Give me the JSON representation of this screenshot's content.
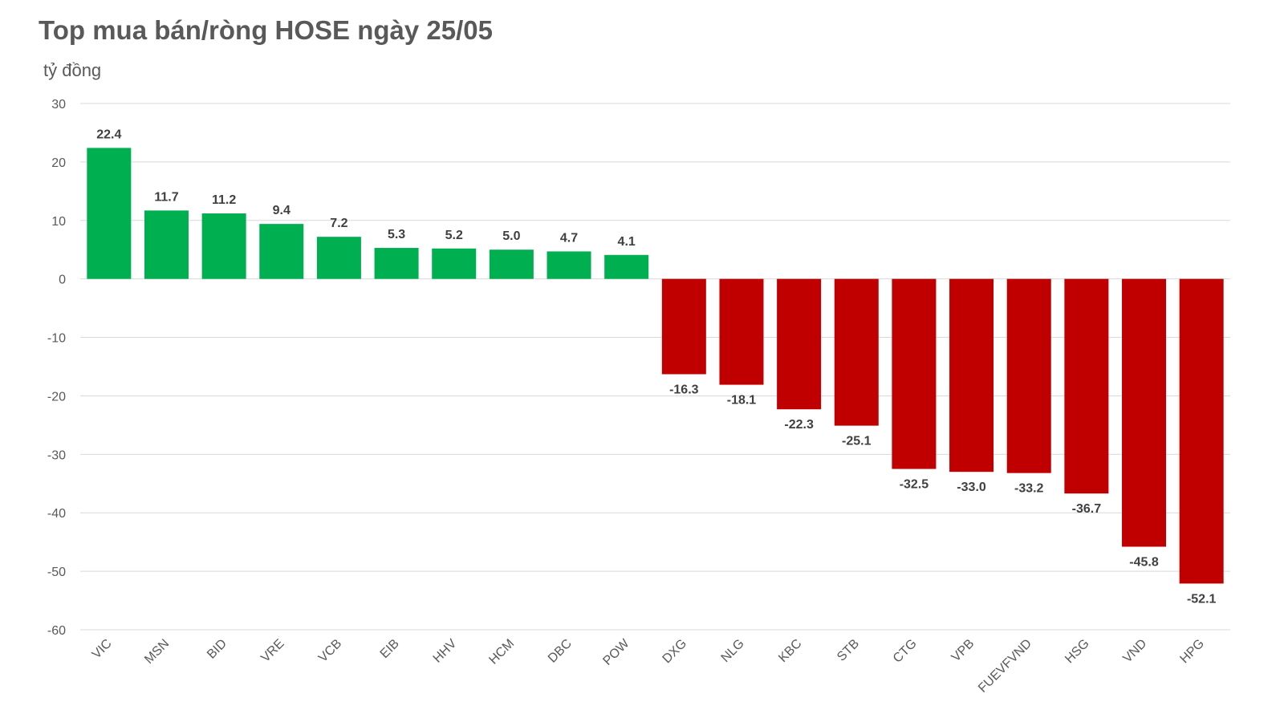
{
  "chart_data": {
    "type": "bar",
    "title": "Top mua bán/ròng HOSE ngày 25/05",
    "ylabel": "tỷ đồng",
    "xlabel": "",
    "ylim": [
      -60,
      30
    ],
    "yticks": [
      30,
      20,
      10,
      0,
      -10,
      -20,
      -30,
      -40,
      -50,
      -60
    ],
    "grid": true,
    "categories": [
      "VIC",
      "MSN",
      "BID",
      "VRE",
      "VCB",
      "EIB",
      "HHV",
      "HCM",
      "DBC",
      "POW",
      "DXG",
      "NLG",
      "KBC",
      "STB",
      "CTG",
      "VPB",
      "FUEVFVND",
      "HSG",
      "VND",
      "HPG"
    ],
    "values": [
      22.4,
      11.7,
      11.2,
      9.4,
      7.2,
      5.3,
      5.2,
      5.0,
      4.7,
      4.1,
      -16.3,
      -18.1,
      -22.3,
      -25.1,
      -32.5,
      -33.0,
      -33.2,
      -36.7,
      -45.8,
      -52.1
    ],
    "colors": {
      "positive": "#00B050",
      "negative": "#C00000"
    }
  }
}
